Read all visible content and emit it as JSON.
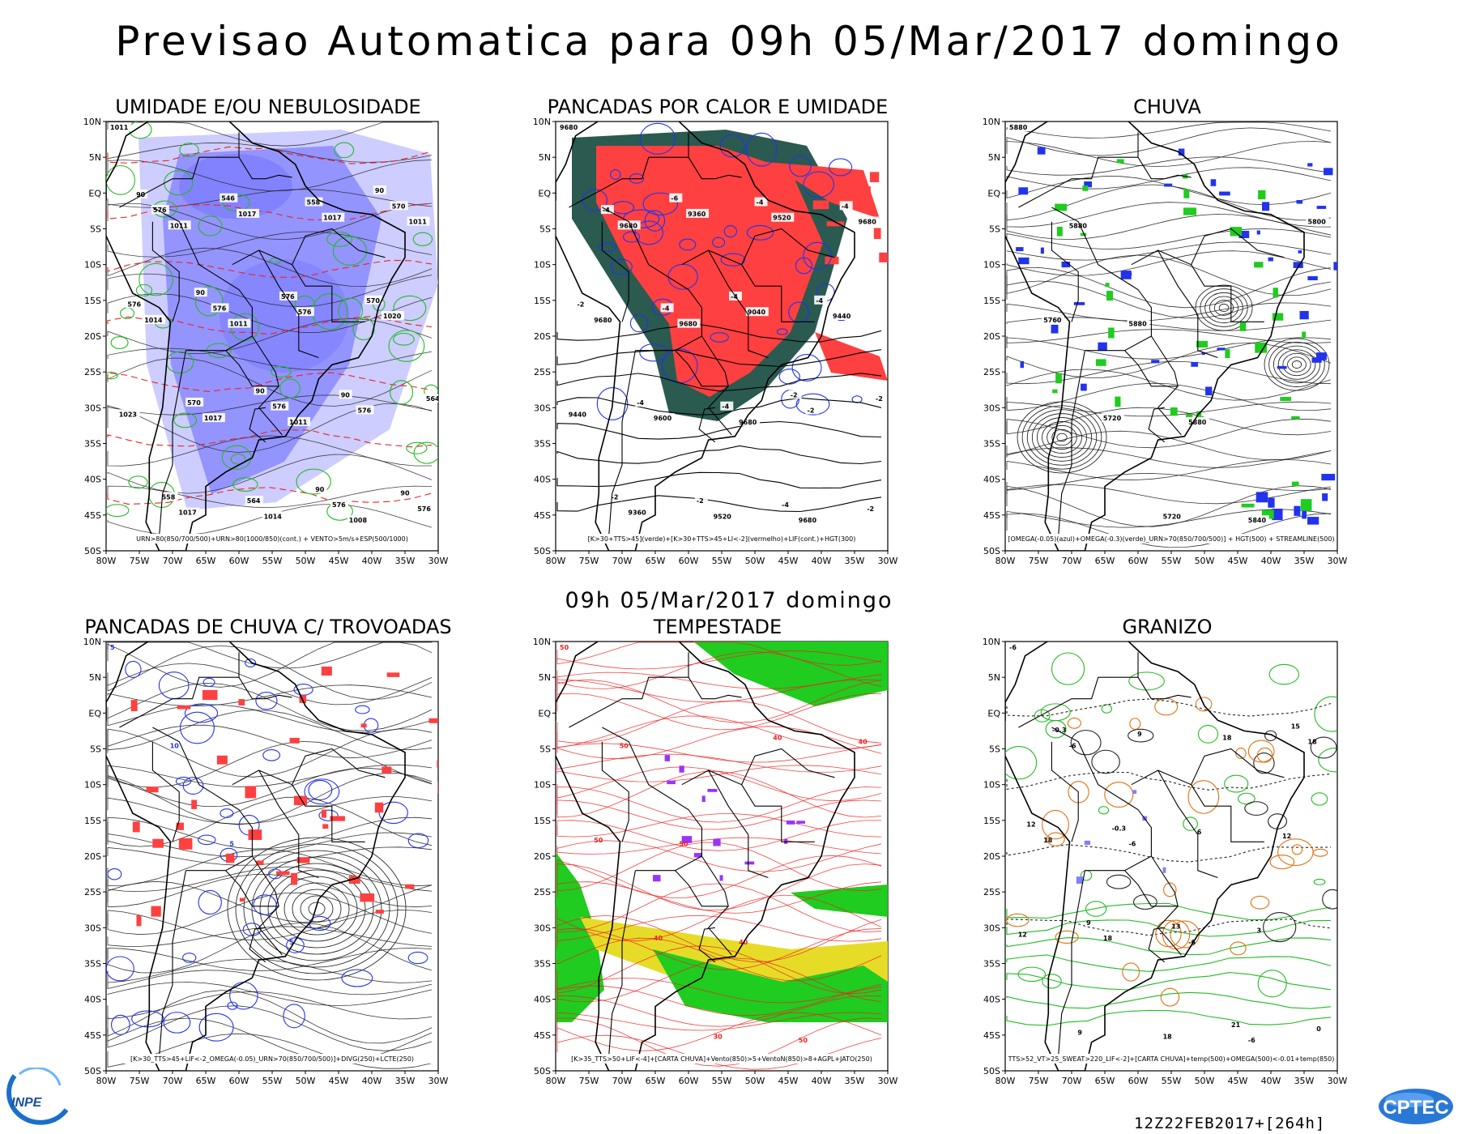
{
  "title": "Previsao Automatica  para 09h 05/Mar/2017 domingo",
  "subtitle": "09h 05/Mar/2017 domingo",
  "run_stamp": "12Z22FEB2017+[264h]",
  "logos": {
    "left": "INPE",
    "right": "CPTEC"
  },
  "lat_ticks": [
    "10N",
    "5N",
    "EQ",
    "5S",
    "10S",
    "15S",
    "20S",
    "25S",
    "30S",
    "35S",
    "40S",
    "45S",
    "50S"
  ],
  "lon_ticks": [
    "80W",
    "75W",
    "70W",
    "65W",
    "60W",
    "55W",
    "50W",
    "45W",
    "40W",
    "35W",
    "30W"
  ],
  "colors": {
    "blue_fill": "#8080ff",
    "light_blue_fill": "#c8c8ff",
    "red_fill": "#ff4040",
    "green_fill": "#1fcc1f",
    "yellow_fill": "#e6dc28",
    "dark_teal_fill": "#2a5a50",
    "purple_fill": "#9933ff",
    "contour_green": "#22bb22",
    "contour_red": "#ee2222",
    "contour_blue": "#2233ee",
    "contour_orange": "#e07010"
  },
  "panels": [
    {
      "id": "umidade",
      "title": "UMIDADE E/OU NEBULOSIDADE",
      "legend": "URN>80(850/700/500)+URN>80(1000/850)(cont.) + VENTO>5m/s+ESP(500/1000)",
      "labels": [
        "1011",
        "1011",
        "1011",
        "1011",
        "1008",
        "1011",
        "1014",
        "1017",
        "1014",
        "1017",
        "1020",
        "1023",
        "1017",
        "1017",
        "576",
        "576",
        "576",
        "576",
        "576",
        "576",
        "576",
        "570",
        "576",
        "570",
        "564",
        "558",
        "570",
        "564",
        "558",
        "546",
        "576",
        "90",
        "90",
        "90",
        "90",
        "90",
        "90",
        "90"
      ]
    },
    {
      "id": "pancadas_calor",
      "title": "PANCADAS POR CALOR E UMIDADE",
      "legend": "[K>30+TTS>45](verde)+[K>30+TTS>45+LI<-2](vermelho)+LIF(cont.)+HGT(300)",
      "labels": [
        "9680",
        "9680",
        "9680",
        "9680",
        "9680",
        "9680",
        "9680",
        "9600",
        "9520",
        "9520",
        "9440",
        "9440",
        "9360",
        "9360",
        "9040",
        "-2",
        "-2",
        "-4",
        "-4",
        "-4",
        "-4",
        "-4",
        "-2",
        "-4",
        "-2",
        "-4",
        "-4",
        "-2",
        "-2",
        "-6",
        "-4",
        "-2"
      ]
    },
    {
      "id": "chuva",
      "title": "CHUVA",
      "legend": "[OMEGA(-0.05)(azul)+OMEGA(-0.3)(verde)_URN>70(850/700/500)] + HGT(500) + STREAMLINE(500)",
      "labels": [
        "5880",
        "5880",
        "5880",
        "5880",
        "5840",
        "5800",
        "5760",
        "5720",
        "5720"
      ]
    },
    {
      "id": "trovoadas",
      "title": "PANCADAS DE CHUVA C/ TROVOADAS",
      "legend": "[K>30_TTS>45+LIF<-2_OMEGA(-0.05)_URN>70(850/700/500)]+DIVG(250)+LCTE(250)",
      "labels": [
        "5",
        "10",
        "5",
        "5"
      ]
    },
    {
      "id": "tempestade",
      "title": "TEMPESTADE",
      "legend": "[K>35_TTS>50+LIF<-4]+[CARTA CHUVA]+Vento(850)>5+VentoN(850)>8+AGPL+JATO(250)",
      "labels": [
        "50",
        "50",
        "50",
        "40",
        "50",
        "40",
        "50",
        "40",
        "30",
        "40"
      ]
    },
    {
      "id": "granizo",
      "title": "GRANIZO",
      "legend": "TTS>52_VT>25_SWEAT>220_LIF<-2]+[CARTA CHUVA]+temp(500)+OMEGA(500)<-0.01+temp(850)",
      "labels": [
        "-6",
        "-6",
        "-6",
        "-6",
        "-6",
        "18",
        "18",
        "18",
        "18",
        "18",
        "12",
        "12",
        "9",
        "9",
        "6",
        "3",
        "0",
        "-0.3",
        "-0.3",
        "13",
        "21",
        "15",
        "12",
        "9"
      ]
    }
  ]
}
